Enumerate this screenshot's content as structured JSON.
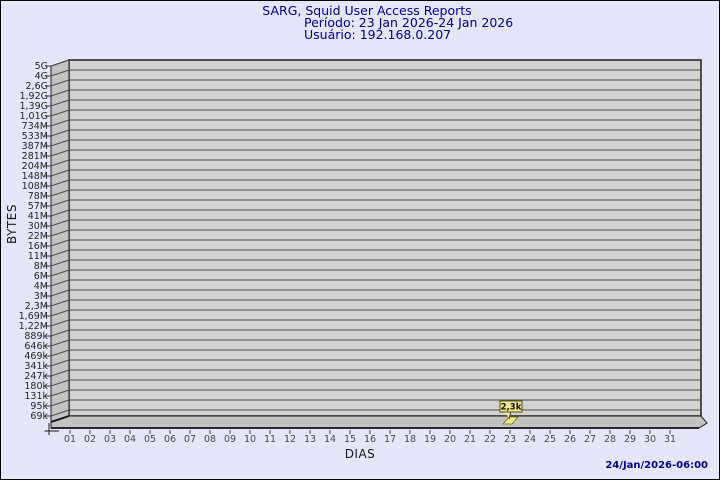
{
  "page": {
    "background": "#e6e6fa",
    "border_color": "#000000"
  },
  "header": {
    "title": "SARG, Squid User Access Reports",
    "period": "Período: 23 Jan 2026-24 Jan 2026",
    "user": "Usuário: 192.168.0.207",
    "text_color": "#00008b"
  },
  "footer": {
    "timestamp": "24/Jan/2026-06:00",
    "text_color": "#00008b"
  },
  "chart_data": {
    "type": "bar",
    "title": "SARG, Squid User Access Reports",
    "xlabel": "DIAS",
    "ylabel": "BYTES",
    "y_scale": "log",
    "grid": true,
    "legend_position": "none",
    "y_tick_labels": [
      "5G",
      "4G",
      "2,6G",
      "1,92G",
      "1,39G",
      "1,01G",
      "734M",
      "533M",
      "387M",
      "281M",
      "204M",
      "148M",
      "108M",
      "78M",
      "57M",
      "41M",
      "30M",
      "22M",
      "16M",
      "11M",
      "8M",
      "6M",
      "4M",
      "3M",
      "2,3M",
      "1,69M",
      "1,22M",
      "889k",
      "646k",
      "469k",
      "341k",
      "247k",
      "180k",
      "131k",
      "95k",
      "69k"
    ],
    "x_tick_labels": [
      "01",
      "02",
      "03",
      "04",
      "05",
      "06",
      "07",
      "08",
      "09",
      "10",
      "11",
      "12",
      "13",
      "14",
      "15",
      "16",
      "17",
      "18",
      "19",
      "20",
      "21",
      "22",
      "23",
      "24",
      "25",
      "26",
      "27",
      "28",
      "29",
      "30",
      "31"
    ],
    "bars": [
      {
        "x": "23",
        "value_label": "2,3k",
        "value_bytes": 2300
      }
    ],
    "colors": {
      "plot_bg": "#d2d2d2",
      "wall": "#c3c3c3",
      "grid_line": "#4f4f4f",
      "edge": "#1f1f1f",
      "bar_fill": "#f0e68c",
      "bar_pointer": "#f6edaa",
      "bar_border": "#6b6b1e",
      "label_box_bg": "#f0e68c",
      "label_box_border": "#55540f"
    }
  }
}
